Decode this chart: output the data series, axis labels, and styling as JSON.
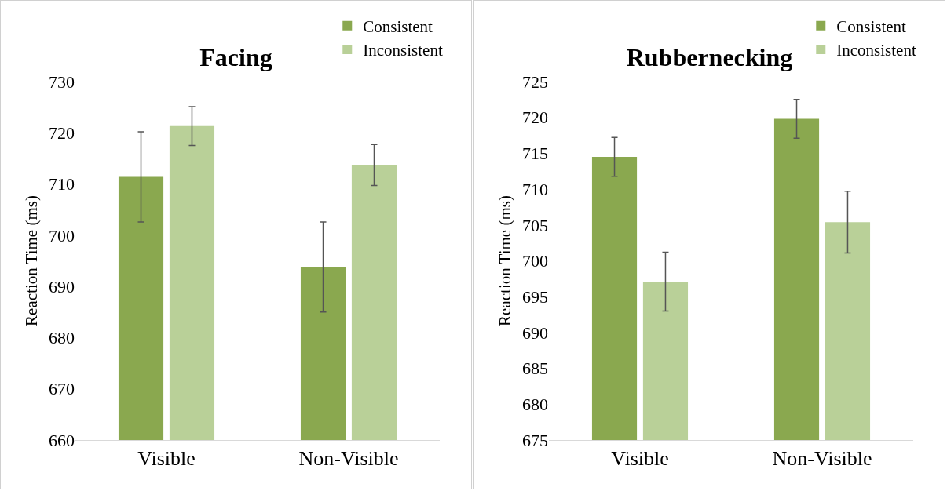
{
  "chart_data": [
    {
      "type": "bar",
      "title": "Facing",
      "ylabel": "Reaction Time (ms)",
      "categories": [
        "Visible",
        "Non-Visible"
      ],
      "ylim": [
        660,
        730
      ],
      "yticks": [
        660,
        670,
        680,
        690,
        700,
        710,
        720,
        730
      ],
      "grid": false,
      "legend": "top right",
      "series": [
        {
          "name": "Consistent",
          "color": "#8aa84f",
          "values": [
            711.4,
            693.8
          ],
          "errors": [
            8.8,
            8.8
          ]
        },
        {
          "name": "Inconsistent",
          "color": "#b9d098",
          "values": [
            721.3,
            713.7
          ],
          "errors": [
            3.8,
            4
          ]
        }
      ]
    },
    {
      "type": "bar",
      "title": "Rubbernecking",
      "ylabel": "Reaction Time (ms)",
      "categories": [
        "Visible",
        "Non-Visible"
      ],
      "ylim": [
        675,
        725
      ],
      "yticks": [
        675,
        680,
        685,
        690,
        695,
        700,
        705,
        710,
        715,
        720,
        725
      ],
      "grid": false,
      "legend": "top right",
      "series": [
        {
          "name": "Consistent",
          "color": "#8aa84f",
          "values": [
            714.5,
            719.8
          ],
          "errors": [
            2.7,
            2.7
          ]
        },
        {
          "name": "Inconsistent",
          "color": "#b9d098",
          "values": [
            697.1,
            705.4
          ],
          "errors": [
            4.1,
            4.3
          ]
        }
      ]
    }
  ]
}
